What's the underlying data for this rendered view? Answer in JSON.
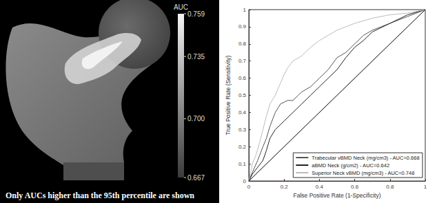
{
  "chart_data": {
    "type": "line",
    "xlabel": "False Positive Rate (1-Specificity)",
    "ylabel": "True Positive Rate (Sensitivity)",
    "xlim": [
      0,
      1
    ],
    "ylim": [
      0,
      1
    ],
    "xticks": [
      0,
      0.2,
      0.4,
      0.6,
      0.8,
      1
    ],
    "yticks": [
      0,
      0.1,
      0.2,
      0.3,
      0.4,
      0.5,
      0.6,
      0.7,
      0.8,
      0.9,
      1
    ],
    "grid": false,
    "legend": "lower right",
    "series": [
      {
        "name": "Trabecular vBMD Neck (mg/cm3) - AUC=0.668",
        "color": "#555555",
        "line_style": "solid",
        "x": [
          0,
          0.02,
          0.05,
          0.08,
          0.1,
          0.12,
          0.15,
          0.18,
          0.22,
          0.25,
          0.28,
          0.3,
          0.35,
          0.4,
          0.45,
          0.5,
          0.55,
          0.6,
          0.65,
          0.7,
          0.8,
          0.9,
          1
        ],
        "values": [
          0,
          0.05,
          0.12,
          0.2,
          0.25,
          0.32,
          0.4,
          0.45,
          0.47,
          0.47,
          0.5,
          0.52,
          0.55,
          0.6,
          0.65,
          0.72,
          0.75,
          0.8,
          0.85,
          0.88,
          0.92,
          0.96,
          1
        ]
      },
      {
        "name": "aBMD Neck (g/cm2) - AUC=0.642",
        "color": "#222222",
        "line_style": "solid",
        "x": [
          0,
          0.02,
          0.05,
          0.08,
          0.1,
          0.12,
          0.15,
          0.18,
          0.2,
          0.25,
          0.3,
          0.35,
          0.4,
          0.45,
          0.5,
          0.55,
          0.6,
          0.65,
          0.7,
          0.8,
          0.9,
          1
        ],
        "values": [
          0,
          0.04,
          0.08,
          0.12,
          0.18,
          0.25,
          0.3,
          0.33,
          0.35,
          0.4,
          0.45,
          0.5,
          0.55,
          0.6,
          0.65,
          0.72,
          0.78,
          0.82,
          0.87,
          0.92,
          0.97,
          1
        ]
      },
      {
        "name": "Superior Neck vBMD (mg/cm3) - AUC=0.748",
        "color": "#bbbbbb",
        "line_style": "solid",
        "x": [
          0,
          0.01,
          0.02,
          0.04,
          0.06,
          0.08,
          0.1,
          0.12,
          0.15,
          0.17,
          0.2,
          0.22,
          0.25,
          0.3,
          0.35,
          0.4,
          0.45,
          0.5,
          0.55,
          0.6,
          0.7,
          0.8,
          0.9,
          1
        ],
        "values": [
          0,
          0.05,
          0.1,
          0.15,
          0.22,
          0.3,
          0.38,
          0.45,
          0.5,
          0.55,
          0.62,
          0.66,
          0.7,
          0.73,
          0.78,
          0.82,
          0.85,
          0.88,
          0.9,
          0.92,
          0.95,
          0.97,
          0.98,
          1
        ]
      },
      {
        "color": "#000000",
        "line_style": "solid",
        "x": [
          0,
          1
        ],
        "values": [
          0,
          1
        ]
      }
    ]
  },
  "colorbar": {
    "title": "AUC",
    "range": [
      0.667,
      0.759
    ],
    "ticks": [
      0.667,
      {
        "value": 0.7,
        "label": "0.700"
      },
      0.735,
      0.759
    ]
  },
  "caption": "Only AUCs higher than the 95th percentile are shown"
}
